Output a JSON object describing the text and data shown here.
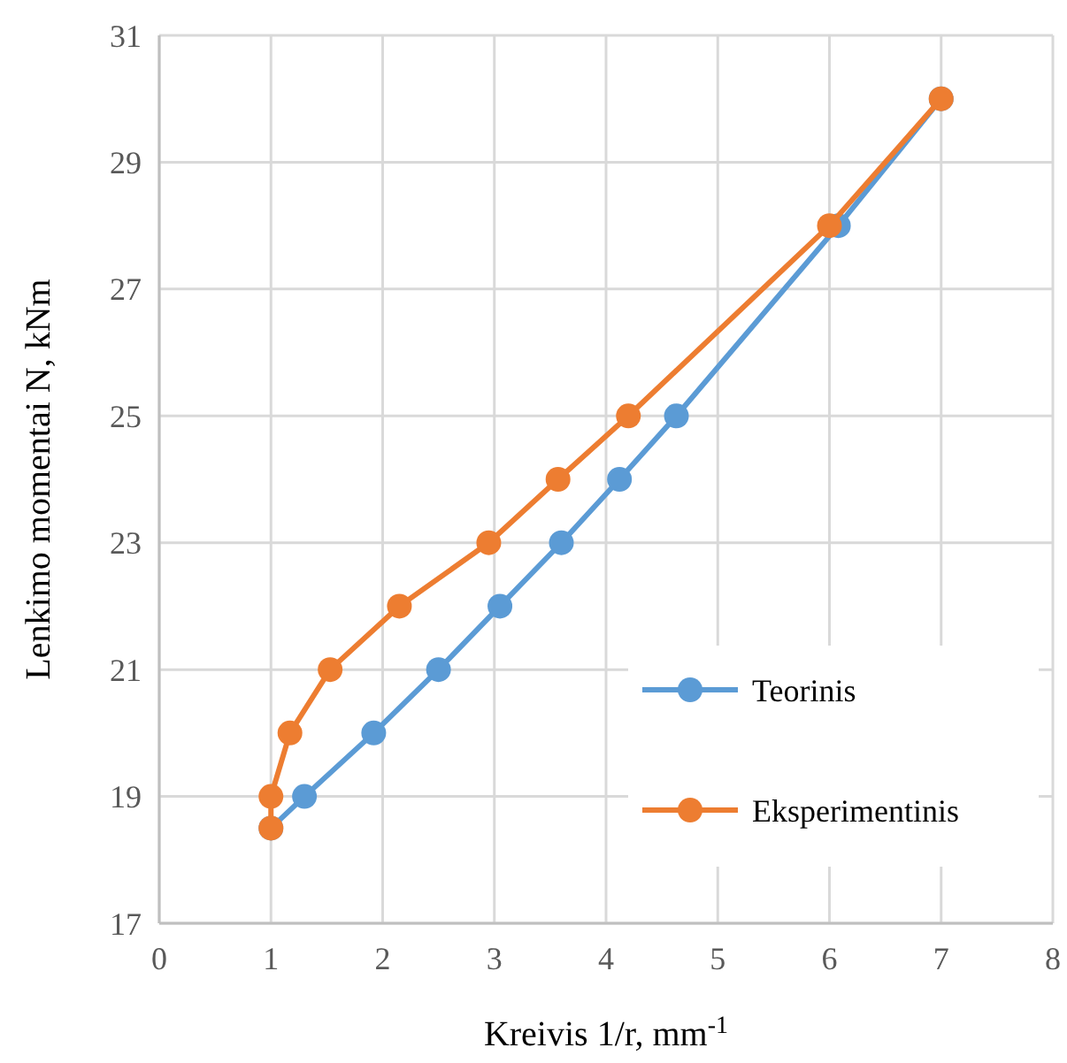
{
  "chart_data": {
    "type": "line",
    "xlabel": "Kreivis 1/r, mm$^{-1}$",
    "ylabel": "Lenkimo momentai N, kNm",
    "xlim": [
      0,
      8
    ],
    "xticks": [
      0,
      1,
      2,
      3,
      4,
      5,
      6,
      7,
      8
    ],
    "ylim": [
      17,
      31
    ],
    "yticks": [
      17,
      19,
      21,
      23,
      25,
      27,
      29,
      31
    ],
    "grid": true,
    "legend": "right",
    "marker": "circle",
    "line_style": "solid",
    "series": [
      {
        "name": "Teorinis",
        "color": "#5b9bd5",
        "x": [
          1,
          1.3,
          1.92,
          2.5,
          3.05,
          3.6,
          4.12,
          4.63,
          6.08,
          7
        ],
        "values": [
          18.5,
          19,
          20,
          21,
          22,
          23,
          24,
          25,
          28,
          30
        ]
      },
      {
        "name": "Eksperimentinis",
        "color": "#ed7d31",
        "x": [
          1,
          1,
          1.17,
          1.53,
          2.15,
          2.95,
          3.57,
          4.2,
          6,
          7
        ],
        "values": [
          18.5,
          19,
          20,
          21,
          22,
          23,
          24,
          25,
          28,
          30
        ]
      }
    ]
  }
}
